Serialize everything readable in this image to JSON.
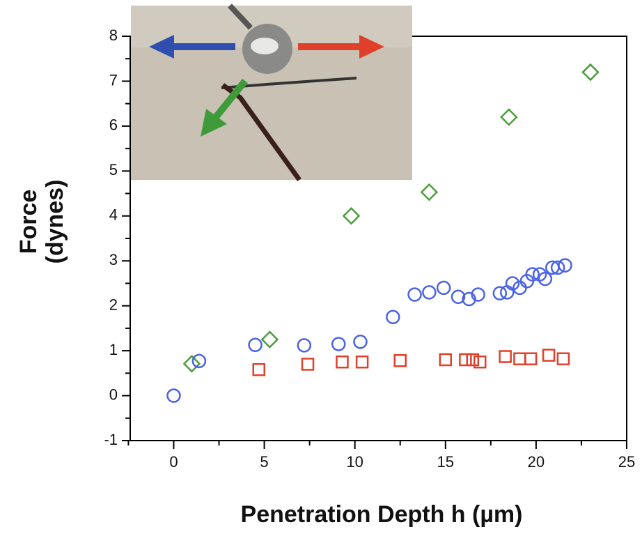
{
  "chart_data": {
    "type": "scatter",
    "xlabel": "Penetration Depth h (µm)",
    "ylabel": [
      "Force",
      "(dynes)"
    ],
    "xlim": [
      -2.4,
      25
    ],
    "ylim": [
      -1,
      8
    ],
    "xticks": [
      0,
      5,
      10,
      15,
      20,
      25
    ],
    "yticks": [
      -1,
      0,
      1,
      2,
      3,
      4,
      5,
      6,
      7,
      8
    ],
    "xticks_minor": [
      -2.5,
      2.5,
      7.5,
      12.5,
      17.5,
      22.5
    ],
    "yticks_minor": [
      -0.5,
      0.5,
      1.5,
      2.5,
      3.5,
      4.5,
      5.5,
      6.5,
      7.5
    ],
    "series": [
      {
        "color": "#4a9e3a",
        "marker": "diamond",
        "x": [
          1.0,
          5.3,
          9.8,
          14.1,
          18.5,
          23.0
        ],
        "values": [
          0.71,
          1.25,
          4.0,
          4.53,
          6.2,
          7.2
        ]
      },
      {
        "color": "#4a62e6",
        "marker": "circle",
        "x": [
          0,
          1.4,
          4.5,
          7.2,
          9.1,
          10.3,
          12.1,
          13.3,
          14.1,
          14.9,
          15.7,
          16.3,
          16.8,
          18.0,
          18.4,
          18.7,
          19.1,
          19.5,
          19.8,
          20.2,
          20.5,
          20.9,
          21.2,
          21.6
        ],
        "values": [
          0,
          0.77,
          1.13,
          1.12,
          1.15,
          1.2,
          1.75,
          2.25,
          2.3,
          2.4,
          2.2,
          2.15,
          2.25,
          2.28,
          2.3,
          2.5,
          2.4,
          2.55,
          2.7,
          2.7,
          2.6,
          2.85,
          2.85,
          2.9
        ]
      },
      {
        "color": "#e0402a",
        "marker": "square",
        "x": [
          4.7,
          7.4,
          9.3,
          10.4,
          12.5,
          15.0,
          16.1,
          16.5,
          16.9,
          18.3,
          19.1,
          19.7,
          20.7,
          21.5
        ],
        "values": [
          0.58,
          0.7,
          0.75,
          0.75,
          0.78,
          0.8,
          0.8,
          0.8,
          0.75,
          0.87,
          0.82,
          0.82,
          0.9,
          0.82
        ]
      }
    ]
  }
}
